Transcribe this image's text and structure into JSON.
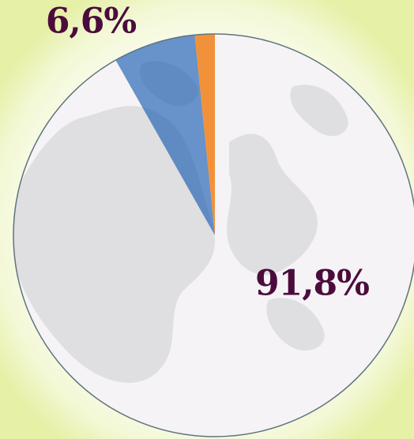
{
  "chart_data": {
    "type": "pie",
    "values": [
      91.8,
      6.6,
      1.6
    ],
    "value_labels": [
      "91,8%",
      "6,6%",
      null
    ],
    "colors": [
      "#f3f1f4",
      "#2f6cb8",
      "#f08420"
    ]
  }
}
